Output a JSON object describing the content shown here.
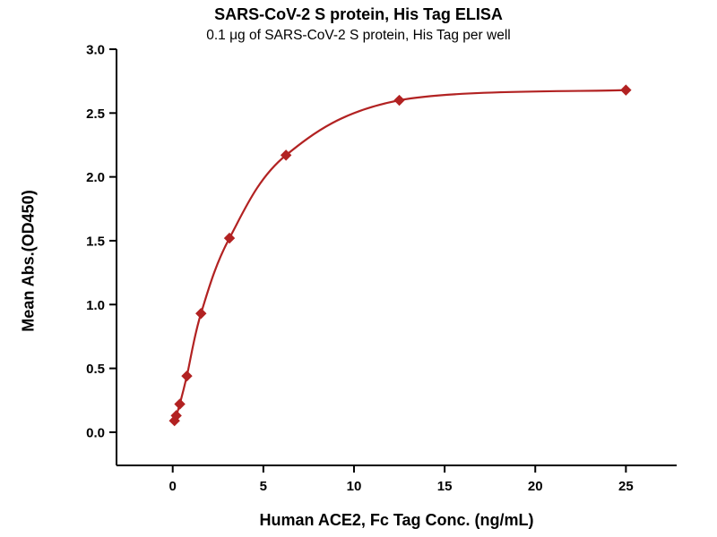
{
  "chart_data": {
    "type": "scatter",
    "title": "SARS-CoV-2 S protein, His Tag ELISA",
    "subtitle": "0.1 μg of SARS-CoV-2 S protein, His Tag per well",
    "xlabel": "Human ACE2, Fc Tag Conc. (ng/mL)",
    "ylabel": "Mean Abs.(OD450)",
    "x": [
      0.098,
      0.195,
      0.39,
      0.78,
      1.56,
      3.13,
      6.25,
      12.5,
      25
    ],
    "y": [
      0.09,
      0.13,
      0.22,
      0.44,
      0.93,
      1.52,
      2.17,
      2.6,
      2.68
    ],
    "curve": "4PL-fit smooth curve through points",
    "xticks": [
      0,
      5,
      10,
      15,
      20,
      25
    ],
    "yticks": [
      "0.0",
      "0.5",
      "1.0",
      "1.5",
      "2.0",
      "2.5",
      "3.0"
    ],
    "xlim": [
      -3.1,
      27.8
    ],
    "ylim": [
      -0.26,
      3.0
    ],
    "marker": "diamond",
    "grid": false,
    "legend_position": "none",
    "accent_color": "#b22222",
    "axis_color": "#000000"
  }
}
